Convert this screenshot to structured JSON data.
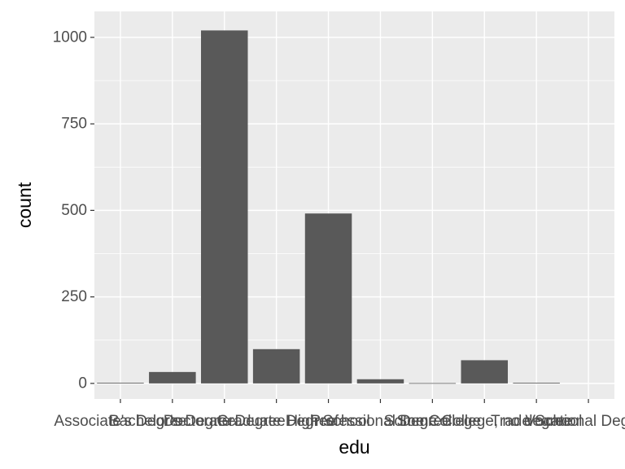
{
  "chart_data": {
    "type": "bar",
    "xlabel": "edu",
    "ylabel": "count",
    "categories": [
      "Associate's Degree",
      "Bachelor's Degree",
      "Doctorate Degree",
      "Graduate Degree",
      "High School",
      "Professional Degree",
      "Some College",
      "Some College, no degree",
      "Trade School",
      "Vocational Degree"
    ],
    "values": [
      2,
      33,
      1020,
      99,
      491,
      12,
      0,
      67,
      2,
      null
    ],
    "ylim": [
      -45,
      1075
    ],
    "yticks": [
      0,
      250,
      500,
      750,
      1000
    ],
    "ytick_labels": [
      "0",
      "250",
      "500",
      "750",
      "1000"
    ],
    "grid": true,
    "background": "#ebebeb",
    "bar_color": "#595959",
    "grid_major_color": "#ffffff"
  }
}
